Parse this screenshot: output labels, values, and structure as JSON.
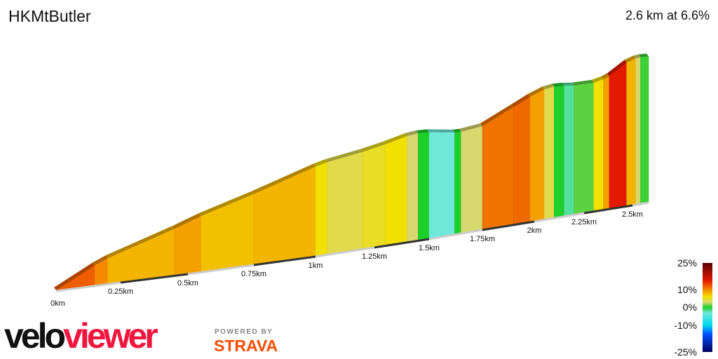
{
  "header": {
    "title": "HKMtButler",
    "summary": "2.6 km at 6.6%"
  },
  "logo": {
    "velo": "velo",
    "viewer": "viewer",
    "powered_by": "POWERED BY",
    "strava": "STRAVA"
  },
  "chart_data": {
    "type": "area",
    "title": "HKMtButler",
    "subtitle": "2.6 km at 6.6%",
    "xlabel": "",
    "ylabel": "",
    "x_ticks": [
      "0km",
      "0.25km",
      "0.5km",
      "0.75km",
      "1km",
      "1.25km",
      "1.5km",
      "1.75km",
      "2km",
      "2.25km",
      "2.5km"
    ],
    "xlim": [
      0,
      2.6
    ],
    "segments": [
      {
        "from": 0,
        "to": 0.15,
        "gradient": 12
      },
      {
        "from": 0.15,
        "to": 0.2,
        "gradient": 10
      },
      {
        "from": 0.2,
        "to": 0.45,
        "gradient": 8
      },
      {
        "from": 0.45,
        "to": 0.55,
        "gradient": 9
      },
      {
        "from": 0.55,
        "to": 0.75,
        "gradient": 7.5
      },
      {
        "from": 0.75,
        "to": 1.0,
        "gradient": 8
      },
      {
        "from": 1.0,
        "to": 1.05,
        "gradient": 6
      },
      {
        "from": 1.05,
        "to": 1.2,
        "gradient": 4
      },
      {
        "from": 1.2,
        "to": 1.3,
        "gradient": 5
      },
      {
        "from": 1.3,
        "to": 1.4,
        "gradient": 6
      },
      {
        "from": 1.4,
        "to": 1.45,
        "gradient": 3
      },
      {
        "from": 1.45,
        "to": 1.5,
        "gradient": 0
      },
      {
        "from": 1.5,
        "to": 1.62,
        "gradient": -3
      },
      {
        "from": 1.62,
        "to": 1.65,
        "gradient": 0
      },
      {
        "from": 1.65,
        "to": 1.75,
        "gradient": 3
      },
      {
        "from": 1.75,
        "to": 1.9,
        "gradient": 11
      },
      {
        "from": 1.9,
        "to": 1.98,
        "gradient": 11.5
      },
      {
        "from": 1.98,
        "to": 2.05,
        "gradient": 9
      },
      {
        "from": 2.05,
        "to": 2.1,
        "gradient": 4
      },
      {
        "from": 2.1,
        "to": 2.15,
        "gradient": 0
      },
      {
        "from": 2.15,
        "to": 2.2,
        "gradient": -2
      },
      {
        "from": 2.2,
        "to": 2.3,
        "gradient": 1
      },
      {
        "from": 2.3,
        "to": 2.35,
        "gradient": 6
      },
      {
        "from": 2.35,
        "to": 2.38,
        "gradient": 9
      },
      {
        "from": 2.38,
        "to": 2.47,
        "gradient": 15
      },
      {
        "from": 2.47,
        "to": 2.52,
        "gradient": 8
      },
      {
        "from": 2.52,
        "to": 2.55,
        "gradient": 3
      },
      {
        "from": 2.55,
        "to": 2.6,
        "gradient": 0.5
      }
    ],
    "legend": {
      "labels": [
        "25%",
        "10%",
        "0%",
        "-10%",
        "-25%"
      ],
      "stops": [
        {
          "gradient": 25,
          "color": "#5a0000"
        },
        {
          "gradient": 15,
          "color": "#e31a00"
        },
        {
          "gradient": 10,
          "color": "#f58a00"
        },
        {
          "gradient": 6,
          "color": "#f2e000"
        },
        {
          "gradient": 3,
          "color": "#d8d870"
        },
        {
          "gradient": 0,
          "color": "#1ecf2a"
        },
        {
          "gradient": -3,
          "color": "#6ee8d8"
        },
        {
          "gradient": -10,
          "color": "#00d8f0"
        },
        {
          "gradient": -15,
          "color": "#0050ff"
        },
        {
          "gradient": -25,
          "color": "#000060"
        }
      ]
    }
  }
}
